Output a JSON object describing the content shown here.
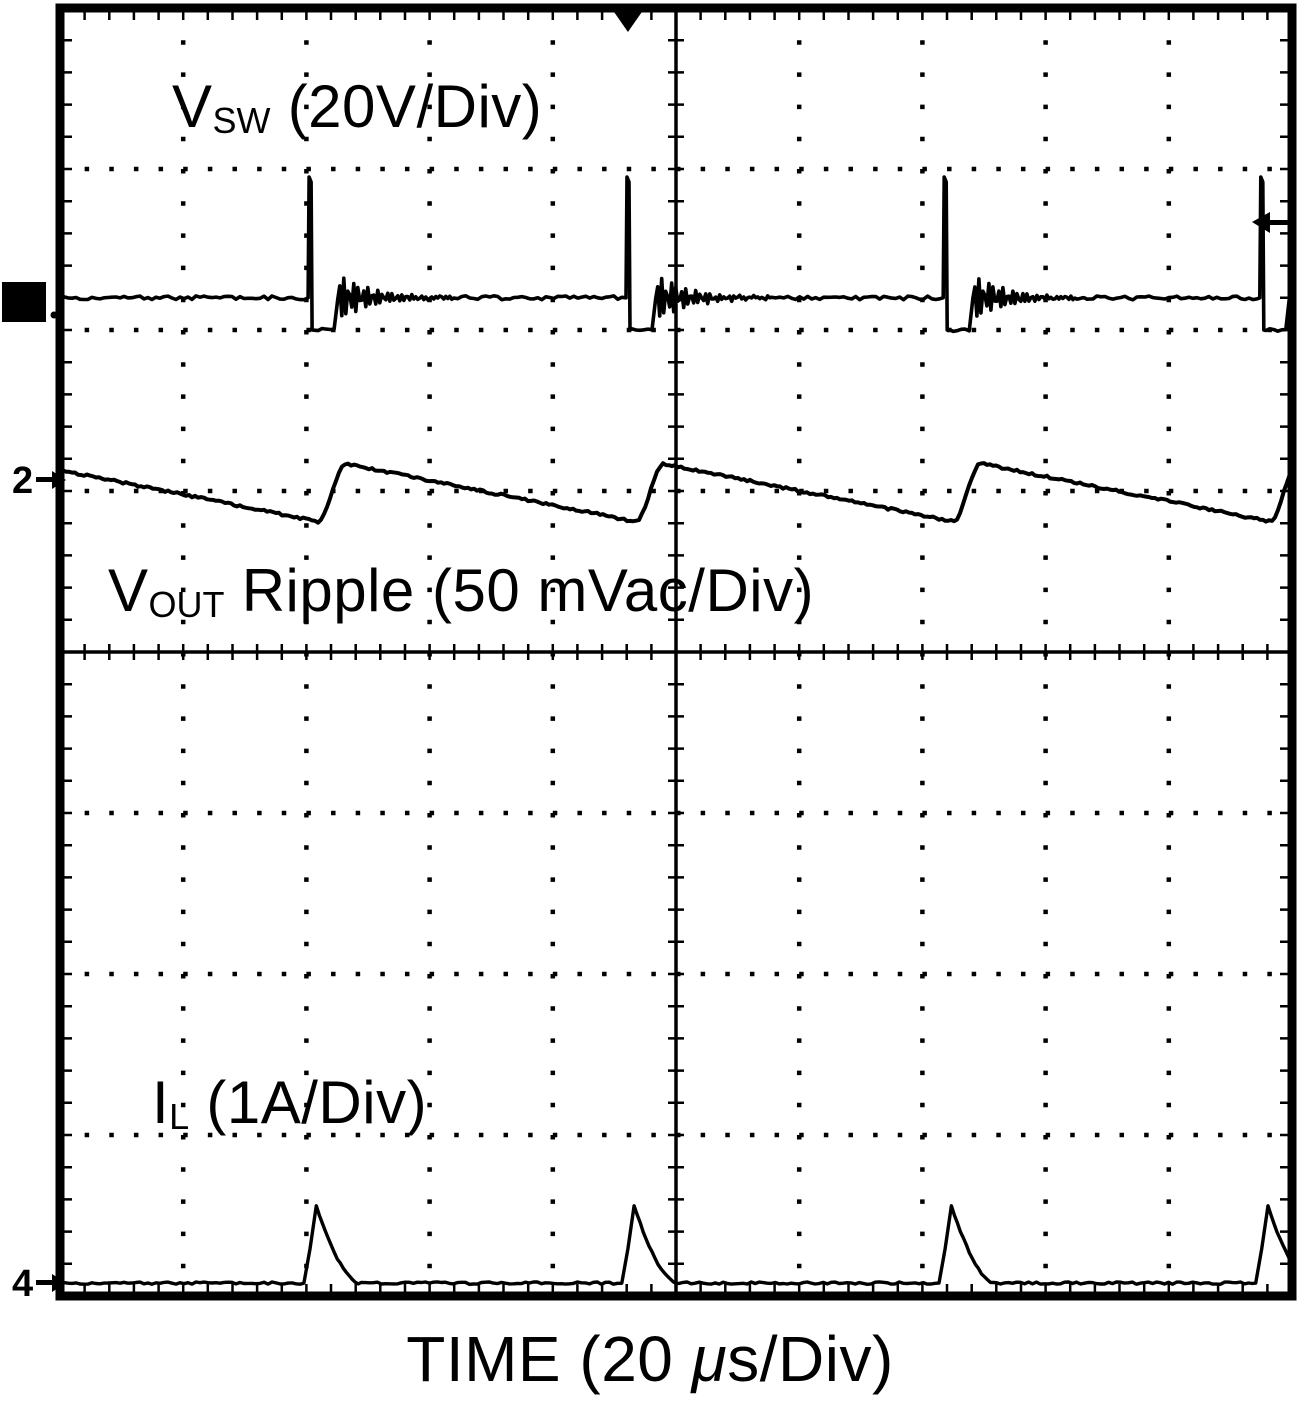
{
  "colors": {
    "background": "#ffffff",
    "foreground": "#000000"
  },
  "labels": {
    "ch1": {
      "sym": "V",
      "sub": "SW",
      "rest": " (20V/Div)"
    },
    "ch2": {
      "sym": "V",
      "sub": "OUT",
      "rest": " Ripple (50 mVac/Div)"
    },
    "ch4": {
      "sym": "I",
      "sub": "L",
      "rest": " (1A/Div)"
    },
    "time": {
      "pre": "TIME (20 ",
      "mu": "μ",
      "post": "s/Div)"
    }
  },
  "markers": {
    "ch2_label": "2",
    "ch4_label": "4"
  },
  "chart_data": {
    "type": "line",
    "title": "",
    "xlabel": "TIME (20 μs/Div)",
    "ylabel": "",
    "x_divisions": 10,
    "y_divisions": 8,
    "time_per_div_us": 20,
    "x_range_us": [
      0,
      200
    ],
    "grid": "dotted graticule, 10x8 divisions, solid center axes with fine ticks",
    "burst_period_us": 51.5,
    "pulse_times_us": [
      40.6,
      92.2,
      143.7,
      195.1
    ],
    "trigger": {
      "position_us": 92.2,
      "level_marker_side": "right"
    },
    "series": [
      {
        "name": "VSW",
        "label": "VSW (20V/Div)",
        "scale_per_div": "20 V",
        "volts_per_div": 20,
        "zero_div": 1.8,
        "baseline_V": 0,
        "pulse_peak_V": 15,
        "undershoot_V": -4,
        "undershoot_width_us": 4.5,
        "description": "Switch-node voltage: narrow positive pulses, negative undershoot, damped ringing after each pulse"
      },
      {
        "name": "VOUT Ripple",
        "label": "VOUT Ripple (50 mVac/Div)",
        "scale_per_div": "50 mVac",
        "mv_per_div": 50,
        "zero_div": 2.93,
        "peak_mV": 5,
        "trough_mV": -13,
        "ripple_pp_mV": 18,
        "rise_time_us": 4.5,
        "description": "Sawtooth output ripple: fast rise at each switching pulse, slow linear decay between pulses"
      },
      {
        "name": "IL",
        "label": "IL (1A/Div)",
        "scale_per_div": "1 A",
        "amps_per_div": 1,
        "zero_div": 7.92,
        "peak_A": 0.48,
        "rise_time_us": 2,
        "fall_time_us": 7,
        "description": "Inductor current: triangular pulses coincident with switch pulses, zero between pulses"
      }
    ]
  }
}
